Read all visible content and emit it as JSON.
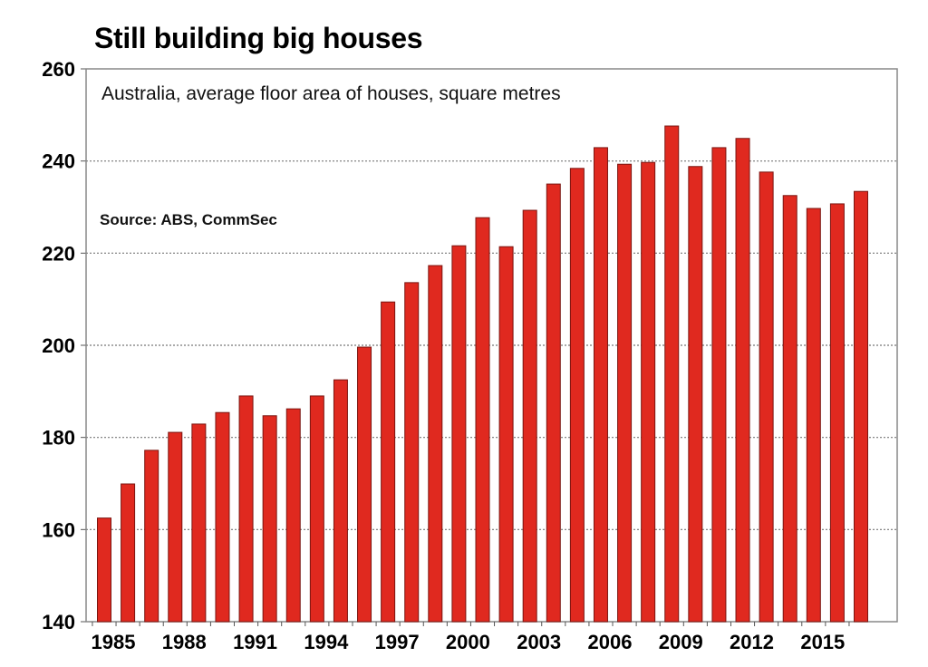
{
  "chart_data": {
    "type": "bar",
    "title": "Still building big houses",
    "subtitle": "Australia, average floor area of houses, square metres",
    "annotation": "Source: ABS, CommSec",
    "xlabel": "",
    "ylabel": "",
    "ylim": [
      140,
      260
    ],
    "yticks": [
      140,
      160,
      180,
      200,
      220,
      240,
      260
    ],
    "xtick_labels": [
      "1985",
      "1988",
      "1991",
      "1994",
      "1997",
      "2000",
      "2003",
      "2006",
      "2009",
      "2012",
      "2015"
    ],
    "grid": "horizontal dotted",
    "bar_color": "#e0291f",
    "categories": [
      1985,
      1986,
      1987,
      1988,
      1989,
      1990,
      1991,
      1992,
      1993,
      1994,
      1995,
      1996,
      1997,
      1998,
      1999,
      2000,
      2001,
      2002,
      2003,
      2004,
      2005,
      2006,
      2007,
      2008,
      2009,
      2010,
      2011,
      2012,
      2013,
      2014,
      2015,
      2016,
      2017
    ],
    "values": [
      162.5,
      169.9,
      177.2,
      181.1,
      182.9,
      185.4,
      189.0,
      184.7,
      186.2,
      189.0,
      192.5,
      199.6,
      209.4,
      213.6,
      217.3,
      221.6,
      227.7,
      221.4,
      229.3,
      235.0,
      238.4,
      242.9,
      239.3,
      239.7,
      247.6,
      238.8,
      242.9,
      244.9,
      237.6,
      232.5,
      229.7,
      230.7,
      233.4
    ]
  }
}
